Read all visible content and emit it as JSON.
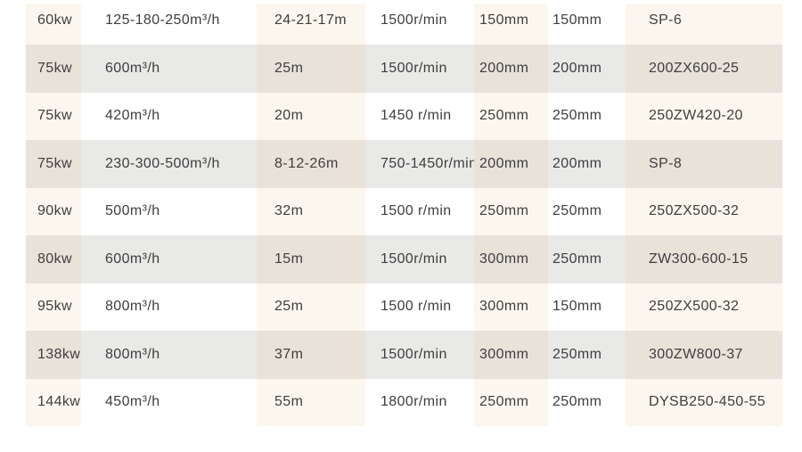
{
  "colors": {
    "page_bg": "#ffffff",
    "odd_row_tinted_column": "#fcf7ee",
    "odd_row_plain_column": "#ffffff",
    "even_row_tinted_column": "#e8e2d9",
    "even_row_plain_column": "#e9e9e7",
    "text": "#3e3e3e"
  },
  "table": {
    "rows": [
      [
        "60kw",
        "125-180-250m³/h",
        "24-21-17m",
        "1500r/min",
        "150mm",
        "150mm",
        "SP-6"
      ],
      [
        "75kw",
        "600m³/h",
        "25m",
        "1500r/min",
        "200mm",
        "200mm",
        "200ZX600-25"
      ],
      [
        "75kw",
        "420m³/h",
        "20m",
        "1450 r/min",
        "250mm",
        "250mm",
        "250ZW420-20"
      ],
      [
        "75kw",
        "230-300-500m³/h",
        "8-12-26m",
        "750-1450r/min",
        "200mm",
        "200mm",
        "SP-8"
      ],
      [
        "90kw",
        "500m³/h",
        "32m",
        "1500 r/min",
        "250mm",
        "250mm",
        "250ZX500-32"
      ],
      [
        "80kw",
        "600m³/h",
        "15m",
        "1500r/min",
        "300mm",
        "250mm",
        "ZW300-600-15"
      ],
      [
        "95kw",
        "800m³/h",
        "25m",
        "1500 r/min",
        "300mm",
        "150mm",
        "250ZX500-32"
      ],
      [
        "138kw",
        "800m³/h",
        "37m",
        "1500r/min",
        "300mm",
        "250mm",
        "300ZW800-37"
      ],
      [
        "144kw",
        "450m³/h",
        "55m",
        "1800r/min",
        "250mm",
        "250mm",
        "DYSB250-450-55"
      ]
    ]
  }
}
